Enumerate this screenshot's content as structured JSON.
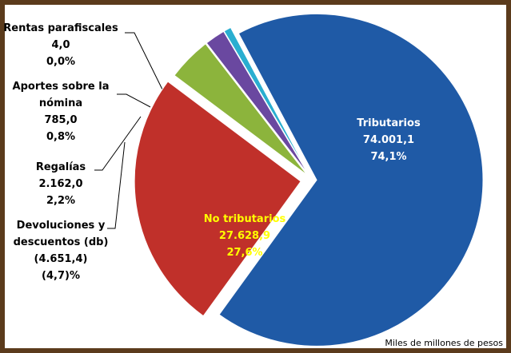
{
  "chart_data": {
    "type": "pie",
    "labels": [
      "Tributarios",
      "No tributarios",
      "Devoluciones y descuentos (db)",
      "Regalías",
      "Aportes sobre la nómina",
      "Rentas parafiscales"
    ],
    "values": [
      74001.1,
      27628.9,
      -4651.4,
      2162.0,
      785.0,
      4.0
    ],
    "value_labels": [
      "74.001,1",
      "27.628,9",
      "(4.651,4)",
      "2.162,0",
      "785,0",
      "4,0"
    ],
    "percents": [
      74.1,
      27.6,
      -4.7,
      2.2,
      0.8,
      0.0
    ],
    "percent_labels": [
      "74,1%",
      "27,6%",
      "(4,7)%",
      "2,2%",
      "0,8%",
      "0,0%"
    ],
    "colors": [
      "#1f5aa6",
      "#c0302a",
      "#8cb43c",
      "#6a48a0",
      "#2aaed0",
      "#f0902a"
    ],
    "note": "Miles de millones de pesos"
  }
}
